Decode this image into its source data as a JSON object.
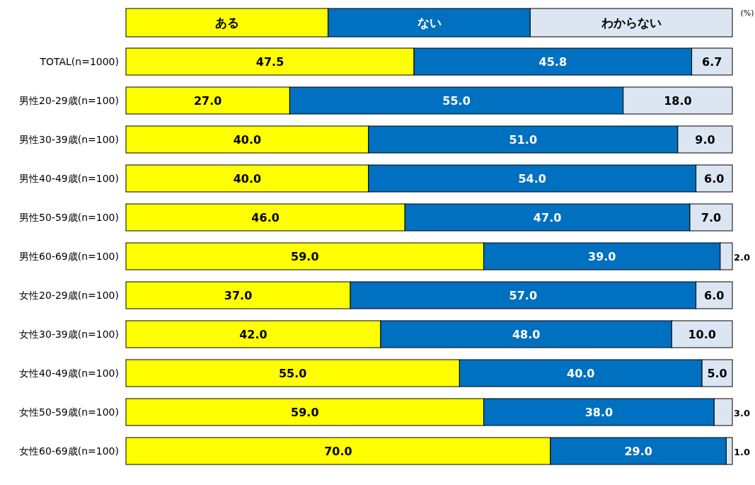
{
  "chart_data": {
    "type": "bar",
    "orientation": "horizontal",
    "stacked": true,
    "legend": "top",
    "categories": [
      "TOTAL(n=1000)",
      "男性20-29歳(n=100)",
      "男性30-39歳(n=100)",
      "男性40-49歳(n=100)",
      "男性50-59歳(n=100)",
      "男性60-69歳(n=100)",
      "女性20-29歳(n=100)",
      "女性30-39歳(n=100)",
      "女性40-49歳(n=100)",
      "女性50-59歳(n=100)",
      "女性60-69歳(n=100)"
    ],
    "series": [
      {
        "name": "ある",
        "color": "#ffff00",
        "values": [
          47.5,
          27.0,
          40.0,
          40.0,
          46.0,
          59.0,
          37.0,
          42.0,
          55.0,
          59.0,
          70.0
        ],
        "value_labels": [
          "47.5",
          "27.0",
          "40.0",
          "40.0",
          "46.0",
          "59.0",
          "37.0",
          "42.0",
          "55.0",
          "59.0",
          "70.0"
        ]
      },
      {
        "name": "ない",
        "color": "#0070c0",
        "values": [
          45.8,
          55.0,
          51.0,
          54.0,
          47.0,
          39.0,
          57.0,
          48.0,
          40.0,
          38.0,
          29.0
        ],
        "value_labels": [
          "45.8",
          "55.0",
          "51.0",
          "54.0",
          "47.0",
          "39.0",
          "57.0",
          "48.0",
          "40.0",
          "38.0",
          "29.0"
        ]
      },
      {
        "name": "わからない",
        "color": "#dce6f2",
        "values": [
          6.7,
          18.0,
          9.0,
          6.0,
          7.0,
          2.0,
          6.0,
          10.0,
          5.0,
          3.0,
          1.0
        ],
        "value_labels": [
          "6.7",
          "18.0",
          "9.0",
          "6.0",
          "7.0",
          "2.0",
          "6.0",
          "10.0",
          "5.0",
          "3.0",
          "1.0"
        ]
      }
    ],
    "annotations": [
      "(%)"
    ]
  }
}
